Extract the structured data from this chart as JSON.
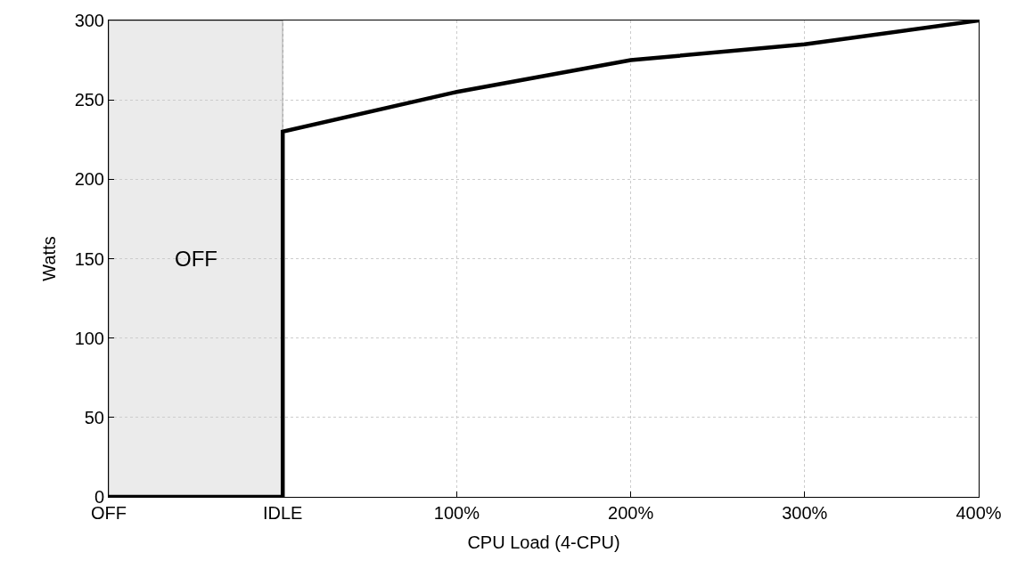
{
  "chart_data": {
    "type": "line",
    "xlabel": "CPU Load (4-CPU)",
    "ylabel": "Watts",
    "x": [
      -100,
      0,
      0,
      100,
      200,
      300,
      400
    ],
    "series": [
      {
        "color": "#000000",
        "values": [
          0,
          0,
          230,
          255,
          275,
          285,
          300
        ]
      }
    ],
    "xlim": [
      -100,
      400
    ],
    "xticks": [
      {
        "value": -100,
        "label": "OFF"
      },
      {
        "value": 0,
        "label": "IDLE"
      },
      {
        "value": 100,
        "label": "100%"
      },
      {
        "value": 200,
        "label": "200%"
      },
      {
        "value": 300,
        "label": "300%"
      },
      {
        "value": 400,
        "label": "400%"
      }
    ],
    "ylim": [
      0,
      300
    ],
    "yticks": [
      0,
      50,
      100,
      150,
      200,
      250,
      300
    ],
    "bands": [
      {
        "axis": "x",
        "from": -100,
        "to": 0,
        "label": "OFF",
        "color": "#ebebeb"
      }
    ],
    "grid": true,
    "marker": "none",
    "line_style": "solid"
  }
}
